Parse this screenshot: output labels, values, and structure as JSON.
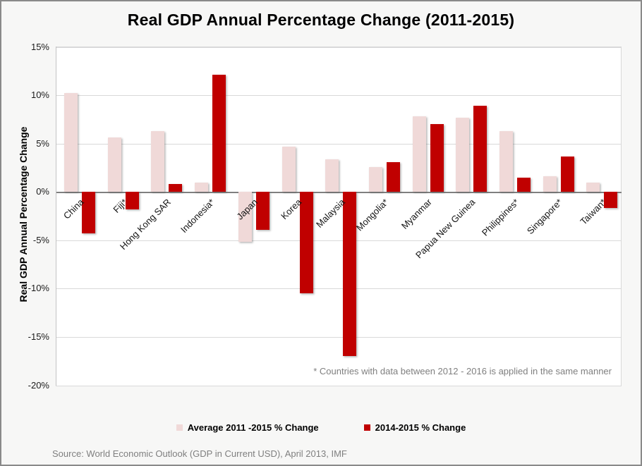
{
  "chart_data": {
    "type": "bar",
    "title": "Real GDP Annual Percentage Change (2011-2015)",
    "xlabel": "",
    "ylabel": "Real GDP Annual Percentage Change",
    "ylim": [
      -20,
      15
    ],
    "yticks": [
      15,
      10,
      5,
      0,
      -5,
      -10,
      -15,
      -20
    ],
    "ytick_suffix": "%",
    "grid": true,
    "legend_position": "bottom",
    "categories": [
      "China",
      "Fiji*",
      "Hong Kong SAR",
      "Indonesia*",
      "Japan",
      "Korea",
      "Malaysia",
      "Mongolia*",
      "Myanmar",
      "Papua New Guinea",
      "Philippines*",
      "Singapore*",
      "Taiwan*"
    ],
    "series": [
      {
        "name": "Average 2011 -2015 % Change",
        "color": "#f0d9d8",
        "values": [
          10.2,
          5.6,
          6.3,
          1.0,
          -5.2,
          4.7,
          3.4,
          2.6,
          7.8,
          7.7,
          6.3,
          1.6,
          1.0
        ]
      },
      {
        "name": "2014-2015 % Change",
        "color": "#c00000",
        "values": [
          -4.3,
          -1.8,
          0.8,
          12.1,
          -3.9,
          -10.5,
          -17.0,
          3.1,
          7.0,
          8.9,
          1.5,
          3.7,
          -1.7
        ]
      }
    ]
  },
  "footnote": "* Countries with data between 2012 - 2016 is applied in the same manner",
  "source": "Source: World Economic Outlook (GDP in Current USD), April 2013, IMF",
  "colors": {
    "background": "#f7f7f6",
    "plot_background": "#ffffff",
    "gridline": "#d9d9d9",
    "zero_line": "#7f7f7f",
    "window_border": "#8a8a8a",
    "muted_text": "#7f7f7f"
  }
}
